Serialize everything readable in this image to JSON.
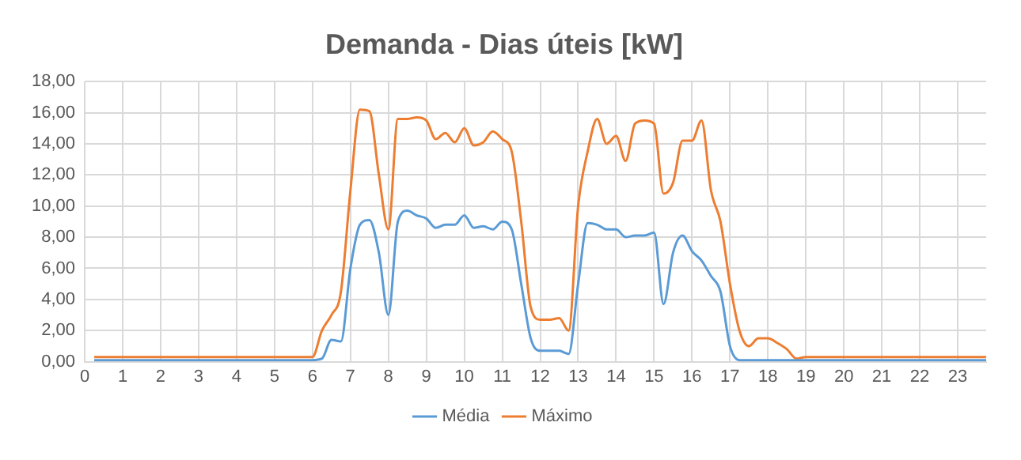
{
  "chart_data": {
    "type": "line",
    "title": "Demanda - Dias úteis [kW]",
    "x": [
      0.25,
      0.5,
      0.75,
      1,
      1.25,
      1.5,
      1.75,
      2,
      2.25,
      2.5,
      2.75,
      3,
      3.25,
      3.5,
      3.75,
      4,
      4.25,
      4.5,
      4.75,
      5,
      5.25,
      5.5,
      5.75,
      6,
      6.25,
      6.5,
      6.75,
      7,
      7.25,
      7.5,
      7.75,
      8,
      8.25,
      8.5,
      8.75,
      9,
      9.25,
      9.5,
      9.75,
      10,
      10.25,
      10.5,
      10.75,
      11,
      11.25,
      11.5,
      11.75,
      12,
      12.25,
      12.5,
      12.75,
      13,
      13.25,
      13.5,
      13.75,
      14,
      14.25,
      14.5,
      14.75,
      15,
      15.25,
      15.5,
      15.75,
      16,
      16.25,
      16.5,
      16.75,
      17,
      17.25,
      17.5,
      17.75,
      18,
      18.25,
      18.5,
      18.75,
      19,
      19.25,
      19.5,
      19.75,
      20,
      20.25,
      20.5,
      20.75,
      21,
      21.25,
      21.5,
      21.75,
      22,
      22.25,
      22.5,
      22.75,
      23,
      23.25,
      23.5,
      23.75
    ],
    "series": [
      {
        "name": "Média",
        "color": "#5b9bd5",
        "values": [
          0.1,
          0.1,
          0.1,
          0.1,
          0.1,
          0.1,
          0.1,
          0.1,
          0.1,
          0.1,
          0.1,
          0.1,
          0.1,
          0.1,
          0.1,
          0.1,
          0.1,
          0.1,
          0.1,
          0.1,
          0.1,
          0.1,
          0.1,
          0.1,
          0.2,
          1.4,
          1.3,
          6,
          8.8,
          9.1,
          7,
          3,
          9,
          9.7,
          9.4,
          9.2,
          8.6,
          8.8,
          8.8,
          9.4,
          8.6,
          8.7,
          8.5,
          9,
          8.5,
          5,
          1.5,
          0.7,
          0.7,
          0.7,
          0.5,
          5,
          8.9,
          8.8,
          8.5,
          8.5,
          8,
          8.1,
          8.1,
          8.3,
          3.7,
          7,
          8.1,
          7.1,
          6.5,
          5.5,
          4.5,
          1,
          0.1,
          0.1,
          0.1,
          0.1,
          0.1,
          0.1,
          0.1,
          0.1,
          0.1,
          0.1,
          0.1,
          0.1,
          0.1,
          0.1,
          0.1,
          0.1,
          0.1,
          0.1,
          0.1,
          0.1,
          0.1,
          0.1,
          0.1,
          0.1,
          0.1,
          0.1,
          0.1
        ]
      },
      {
        "name": "Máximo",
        "color": "#ed7d31",
        "values": [
          0.3,
          0.3,
          0.3,
          0.3,
          0.3,
          0.3,
          0.3,
          0.3,
          0.3,
          0.3,
          0.3,
          0.3,
          0.3,
          0.3,
          0.3,
          0.3,
          0.3,
          0.3,
          0.3,
          0.3,
          0.3,
          0.3,
          0.3,
          0.3,
          2,
          3,
          4.5,
          11,
          16.2,
          16.1,
          12,
          8.5,
          15.6,
          15.6,
          15.7,
          15.5,
          14.3,
          14.7,
          14.1,
          15,
          13.9,
          14.1,
          14.8,
          14.3,
          13.5,
          9,
          3.5,
          2.7,
          2.7,
          2.8,
          2,
          10,
          13.5,
          15.6,
          14,
          14.5,
          12.9,
          15.3,
          15.5,
          15.3,
          10.8,
          11.5,
          14.2,
          14.2,
          15.5,
          11,
          9,
          5,
          2,
          1,
          1.5,
          1.5,
          1.2,
          0.8,
          0.2,
          0.3,
          0.3,
          0.3,
          0.3,
          0.3,
          0.3,
          0.3,
          0.3,
          0.3,
          0.3,
          0.3,
          0.3,
          0.3,
          0.3,
          0.3,
          0.3,
          0.3,
          0.3,
          0.3,
          0.3
        ]
      }
    ],
    "xlim": [
      0,
      23.75
    ],
    "xticks": [
      0,
      1,
      2,
      3,
      4,
      5,
      6,
      7,
      8,
      9,
      10,
      11,
      12,
      13,
      14,
      15,
      16,
      17,
      18,
      19,
      20,
      21,
      22,
      23
    ],
    "ylim": [
      0,
      18
    ],
    "yticks": [
      {
        "value": 0,
        "label": "0,00"
      },
      {
        "value": 2,
        "label": "2,00"
      },
      {
        "value": 4,
        "label": "4,00"
      },
      {
        "value": 6,
        "label": "6,00"
      },
      {
        "value": 8,
        "label": "8,00"
      },
      {
        "value": 10,
        "label": "10,00"
      },
      {
        "value": 12,
        "label": "12,00"
      },
      {
        "value": 14,
        "label": "14,00"
      },
      {
        "value": 16,
        "label": "16,00"
      },
      {
        "value": 18,
        "label": "18,00"
      }
    ],
    "grid": true,
    "legend": "bottom",
    "marker": "none",
    "line_style": "solid"
  }
}
